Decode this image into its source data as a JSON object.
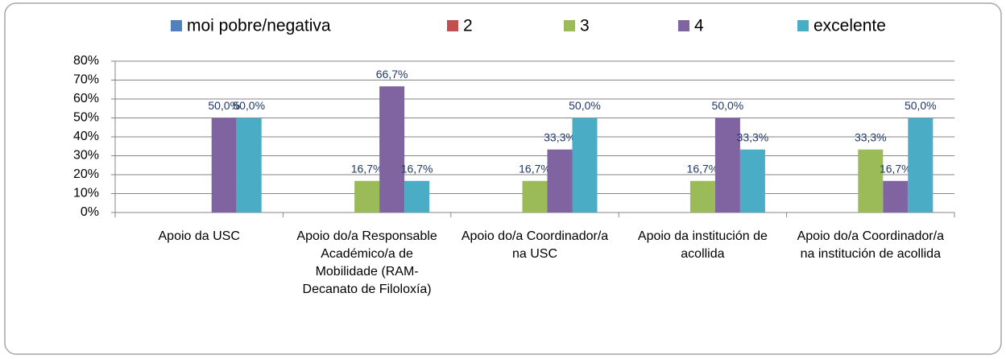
{
  "chart_data": {
    "type": "bar",
    "categories": [
      "Apoio da USC",
      "Apoio do/a Responsable Académico/a de Mobilidade (RAM-Decanato de Filoloxía)",
      "Apoio do/a Coordinador/a na USC",
      "Apoio da institución de acollida",
      "Apoio do/a Coordinador/a na institución de acollida"
    ],
    "series": [
      {
        "name": "moi pobre/negativa",
        "color": "#4f81bd",
        "values": [
          0,
          0,
          0,
          0,
          0
        ],
        "value_labels": [
          null,
          null,
          null,
          null,
          null
        ]
      },
      {
        "name": "2",
        "color": "#c0504d",
        "values": [
          0,
          0,
          0,
          0,
          0
        ],
        "value_labels": [
          null,
          null,
          null,
          null,
          null
        ]
      },
      {
        "name": "3",
        "color": "#9bbb59",
        "values": [
          0,
          16.7,
          16.7,
          16.7,
          33.3
        ],
        "value_labels": [
          null,
          "16,7%",
          "16,7%",
          "16,7%",
          "33,3%"
        ]
      },
      {
        "name": "4",
        "color": "#8064a2",
        "values": [
          50,
          66.7,
          33.3,
          50,
          16.7
        ],
        "value_labels": [
          "50,0%",
          "66,7%",
          "33,3%",
          "50,0%",
          "16,7%"
        ]
      },
      {
        "name": "excelente",
        "color": "#4bacc6",
        "values": [
          50,
          16.7,
          50,
          33.3,
          50
        ],
        "value_labels": [
          "50,0%",
          "16,7%",
          "50,0%",
          "33,3%",
          "50,0%"
        ]
      }
    ],
    "ylim": [
      0,
      80
    ],
    "yticks": [
      {
        "value": 0,
        "label": "0%"
      },
      {
        "value": 10,
        "label": "10%"
      },
      {
        "value": 20,
        "label": "20%"
      },
      {
        "value": 30,
        "label": "30%"
      },
      {
        "value": 40,
        "label": "40%"
      },
      {
        "value": 50,
        "label": "50%"
      },
      {
        "value": 60,
        "label": "60%"
      },
      {
        "value": 70,
        "label": "70%"
      },
      {
        "value": 80,
        "label": "80%"
      }
    ],
    "grid": true,
    "legend": "top"
  }
}
